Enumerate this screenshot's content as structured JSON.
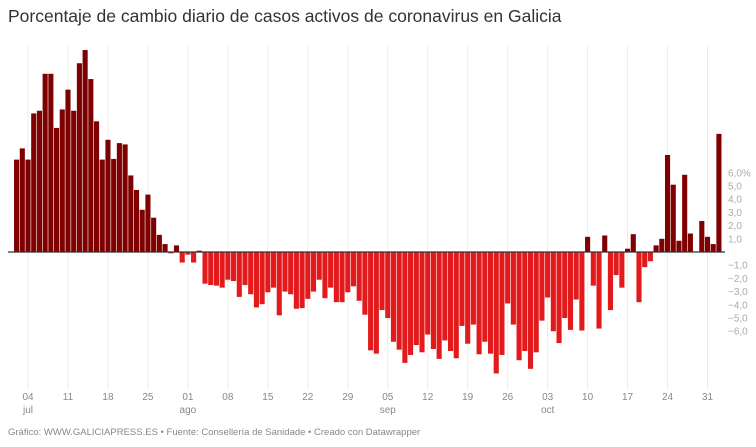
{
  "chart_data": {
    "type": "bar",
    "title": "Porcentaje de cambio diario de casos activos de coronavirus en Galicia",
    "footer": "Gráfico: WWW.GALICIAPRESS.ES • Fuente: Consellería de Sanidade • Creado con Datawrapper",
    "xlabel": "",
    "ylabel": "",
    "ylim": [
      -9.5,
      15.5
    ],
    "grid": "vertical",
    "colors": {
      "positive": "#7f0000",
      "negative": "#e31a1c",
      "baseline": "#333333",
      "grid": "#ececec"
    },
    "y_ticks": [
      {
        "value": 6,
        "label": "6,0%"
      },
      {
        "value": 5,
        "label": "5,0"
      },
      {
        "value": 4,
        "label": "4,0"
      },
      {
        "value": 3,
        "label": "3,0"
      },
      {
        "value": 2,
        "label": "2,0"
      },
      {
        "value": 1,
        "label": "1,0"
      },
      {
        "value": -1,
        "label": "−1,0"
      },
      {
        "value": -2,
        "label": "−2,0"
      },
      {
        "value": -3,
        "label": "−3,0"
      },
      {
        "value": -4,
        "label": "−4,0"
      },
      {
        "value": -5,
        "label": "−5,0"
      },
      {
        "value": -6,
        "label": "−6,0"
      }
    ],
    "x_ticks": [
      {
        "date": "jul 04",
        "label": "04",
        "month": "jul"
      },
      {
        "date": "jul 11",
        "label": "11",
        "month": ""
      },
      {
        "date": "jul 18",
        "label": "18",
        "month": ""
      },
      {
        "date": "jul 25",
        "label": "25",
        "month": ""
      },
      {
        "date": "ago 01",
        "label": "01",
        "month": "ago"
      },
      {
        "date": "ago 08",
        "label": "08",
        "month": ""
      },
      {
        "date": "ago 15",
        "label": "15",
        "month": ""
      },
      {
        "date": "ago 22",
        "label": "22",
        "month": ""
      },
      {
        "date": "ago 29",
        "label": "29",
        "month": ""
      },
      {
        "date": "sep 05",
        "label": "05",
        "month": "sep"
      },
      {
        "date": "sep 12",
        "label": "12",
        "month": ""
      },
      {
        "date": "sep 19",
        "label": "19",
        "month": ""
      },
      {
        "date": "sep 26",
        "label": "26",
        "month": ""
      },
      {
        "date": "oct 03",
        "label": "03",
        "month": "oct"
      },
      {
        "date": "oct 10",
        "label": "10",
        "month": ""
      },
      {
        "date": "oct 17",
        "label": "17",
        "month": ""
      },
      {
        "date": "oct 24",
        "label": "24",
        "month": ""
      },
      {
        "date": "oct 31",
        "label": "31",
        "month": ""
      }
    ],
    "x": [
      "jul 02",
      "jul 03",
      "jul 04",
      "jul 05",
      "jul 06",
      "jul 07",
      "jul 08",
      "jul 09",
      "jul 10",
      "jul 11",
      "jul 12",
      "jul 13",
      "jul 14",
      "jul 15",
      "jul 16",
      "jul 17",
      "jul 18",
      "jul 19",
      "jul 20",
      "jul 21",
      "jul 22",
      "jul 23",
      "jul 24",
      "jul 25",
      "jul 26",
      "jul 27",
      "jul 28",
      "jul 29",
      "jul 30",
      "jul 31",
      "ago 01",
      "ago 02",
      "ago 03",
      "ago 04",
      "ago 05",
      "ago 06",
      "ago 07",
      "ago 08",
      "ago 09",
      "ago 10",
      "ago 11",
      "ago 12",
      "ago 13",
      "ago 14",
      "ago 15",
      "ago 16",
      "ago 17",
      "ago 18",
      "ago 19",
      "ago 20",
      "ago 21",
      "ago 22",
      "ago 23",
      "ago 24",
      "ago 25",
      "ago 26",
      "ago 27",
      "ago 28",
      "ago 29",
      "ago 30",
      "ago 31",
      "sep 01",
      "sep 02",
      "sep 03",
      "sep 04",
      "sep 05",
      "sep 06",
      "sep 07",
      "sep 08",
      "sep 09",
      "sep 10",
      "sep 11",
      "sep 12",
      "sep 13",
      "sep 14",
      "sep 15",
      "sep 16",
      "sep 17",
      "sep 18",
      "sep 19",
      "sep 20",
      "sep 21",
      "sep 22",
      "sep 23",
      "sep 24",
      "sep 25",
      "sep 26",
      "sep 27",
      "sep 28",
      "sep 29",
      "sep 30",
      "oct 01",
      "oct 02",
      "oct 03",
      "oct 04",
      "oct 05",
      "oct 06",
      "oct 07",
      "oct 08",
      "oct 09",
      "oct 10",
      "oct 11",
      "oct 12",
      "oct 13",
      "oct 14",
      "oct 15",
      "oct 16",
      "oct 17",
      "oct 18",
      "oct 19",
      "oct 20",
      "oct 21",
      "oct 22",
      "oct 23",
      "oct 24",
      "oct 25",
      "oct 26",
      "oct 27",
      "oct 28",
      "oct 29",
      "oct 30",
      "oct 31",
      "nov 01",
      "nov 02"
    ],
    "values": [
      7.0,
      7.85,
      7.0,
      10.5,
      10.7,
      13.5,
      13.5,
      9.4,
      10.8,
      12.3,
      10.7,
      14.3,
      15.3,
      13.1,
      9.9,
      7.0,
      8.5,
      7.05,
      8.25,
      8.15,
      5.8,
      4.7,
      3.2,
      4.35,
      2.6,
      1.3,
      0.6,
      -0.1,
      0.5,
      -0.8,
      -0.2,
      -0.8,
      0.1,
      -2.4,
      -2.5,
      -2.55,
      -2.7,
      -2.1,
      -2.2,
      -3.4,
      -2.5,
      -3.2,
      -4.2,
      -3.95,
      -3.05,
      -2.7,
      -4.8,
      -3.0,
      -3.2,
      -4.3,
      -4.25,
      -3.55,
      -3.0,
      -2.1,
      -3.5,
      -2.7,
      -3.8,
      -3.8,
      -3.05,
      -2.6,
      -3.7,
      -4.75,
      -7.45,
      -7.7,
      -4.4,
      -5.0,
      -6.8,
      -7.4,
      -8.4,
      -7.8,
      -7.05,
      -7.6,
      -6.25,
      -7.35,
      -8.1,
      -6.7,
      -7.5,
      -8.05,
      -5.6,
      -6.95,
      -5.5,
      -7.75,
      -6.8,
      -7.7,
      -9.2,
      -7.8,
      -3.9,
      -5.5,
      -8.2,
      -7.5,
      -8.85,
      -7.6,
      -5.2,
      -3.45,
      -6.0,
      -6.9,
      -5.0,
      -5.9,
      -3.6,
      -5.95,
      1.15,
      -2.55,
      -5.8,
      1.25,
      -4.4,
      -1.75,
      -2.7,
      0.25,
      1.35,
      -3.8,
      -1.15,
      -0.7,
      0.5,
      1.0,
      7.35,
      5.1,
      0.85,
      5.85,
      1.4,
      0,
      2.35,
      1.15,
      0.6,
      8.95
    ]
  }
}
